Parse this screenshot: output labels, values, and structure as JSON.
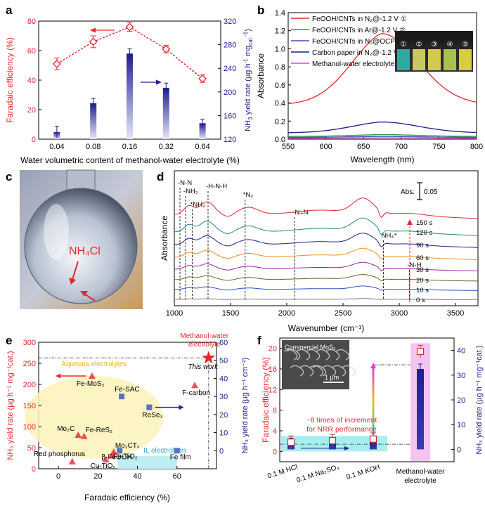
{
  "chart_data": [
    {
      "panel": "a",
      "type": "bar+line",
      "categories": [
        "0.04",
        "0.08",
        "0.16",
        "0.32",
        "0.64"
      ],
      "xlabel": "Water volumetric content of methanol-water electrolyte (%)",
      "ylabel": "Faradaic efficiency (%)",
      "ylabel2_parts": [
        "NH",
        "3",
        " yield rate (µg h",
        "-1",
        " mg",
        "cat.",
        "-1",
        ")"
      ],
      "ylim": [
        0,
        80
      ],
      "ylim2": [
        120,
        320
      ],
      "yticks": [
        "0",
        "20",
        "40",
        "60",
        "80"
      ],
      "yticks2": [
        "120",
        "160",
        "200",
        "240",
        "280",
        "320"
      ],
      "line_series": {
        "name": "Faradaic efficiency",
        "values": [
          51,
          66,
          76,
          61,
          41
        ],
        "err": [
          4,
          4,
          3,
          2.5,
          2.5
        ],
        "color": "#e8262a"
      },
      "bar_series": {
        "name": "NH3 yield rate",
        "values": [
          132,
          181,
          265,
          207,
          147
        ],
        "err": [
          10,
          8,
          8,
          8,
          7
        ],
        "color": "#1f1f8f"
      }
    },
    {
      "panel": "b",
      "type": "line",
      "xlabel": "Wavelength (nm)",
      "ylabel": "Absorbance",
      "xlim": [
        550,
        800
      ],
      "ylim": [
        0,
        1.4
      ],
      "xticks": [
        "550",
        "600",
        "650",
        "700",
        "750",
        "800"
      ],
      "yticks": [
        "0.0",
        "0.2",
        "0.4",
        "0.6",
        "0.8",
        "1.0",
        "1.2",
        "1.4"
      ],
      "series": [
        {
          "name": "FeOOH/CNTs in N₂@-1.2 V ①",
          "color": "#e8262a",
          "peak": 1.17,
          "base": 0.38
        },
        {
          "name": "FeOOH/CNTs in Ar@-1.2 V ②",
          "color": "#1f9e3a",
          "peak": 0.05,
          "base": 0.03
        },
        {
          "name": "FeOOH/CNTs in N₂@OCP ③",
          "color": "#4a4ab8",
          "peak": 0.03,
          "base": 0.02
        },
        {
          "name": "Carbon paper in N₂@-1.2 V ④",
          "color": "#1f1f8f",
          "peak": 0.19,
          "base": 0.07
        },
        {
          "name": "Methanol-water electrolyte ⑤",
          "color": "#e040e0",
          "peak": 0.015,
          "base": 0.01
        }
      ],
      "inset_labels": [
        "①",
        "②",
        "③",
        "④",
        "⑤"
      ]
    },
    {
      "panel": "c",
      "type": "photo",
      "label": "NH₄Cl"
    },
    {
      "panel": "d",
      "type": "line",
      "xlabel": "Wavenumber (cm⁻¹)",
      "ylabel": "Absorbance",
      "xlim": [
        1000,
        3700
      ],
      "xticks": [
        "1000",
        "1500",
        "2000",
        "2500",
        "3000",
        "3500"
      ],
      "scale_label": "Abs.",
      "scale_value": "0.05",
      "series_labels": [
        "150 s",
        "120 s",
        "90 s",
        "60 s",
        "30 s",
        "20 s",
        "10 s",
        "0 s"
      ],
      "series_colors": [
        "#e8262a",
        "#1a8a7a",
        "#1f1f8f",
        "#f08a1c",
        "#a020a0",
        "#5a6e2a",
        "#2a50c8",
        "#7a7a7a"
      ],
      "markers": [
        {
          "label": "-N-N",
          "x": 1050
        },
        {
          "label": "-NH₂",
          "x": 1100
        },
        {
          "label": "*NH₃",
          "x": 1160
        },
        {
          "label": "-H-N-H",
          "x": 1300
        },
        {
          "label": "*N₂",
          "x": 1630
        },
        {
          "label": "-N=N",
          "x": 2070
        },
        {
          "label": "NH₄⁺",
          "x": 2860
        },
        {
          "label": "-N-H",
          "x": 3090
        }
      ]
    },
    {
      "panel": "e",
      "type": "scatter",
      "xlabel": "Faradaic efficiency (%)",
      "ylabel": "NH₃ yield rate (µg h⁻¹ mg⁻¹cat.)",
      "ylabel2": "NH₃ yield rate (µg h⁻¹ cm⁻²)",
      "xlim": [
        -10,
        80
      ],
      "ylim": [
        0,
        300
      ],
      "ylim2": [
        -10,
        60
      ],
      "xticks": [
        "0",
        "20",
        "40",
        "60"
      ],
      "yticks": [
        "0",
        "50",
        "100",
        "150",
        "200",
        "250",
        "300"
      ],
      "yticks2": [
        "0",
        "10",
        "20",
        "30",
        "40",
        "50",
        "60"
      ],
      "region_labels": [
        "Aqueous electrolytes",
        "IL electrolytes"
      ],
      "star": {
        "label": "Methanol-water electrolyte",
        "sub": "This work",
        "x": 76,
        "y": 263
      },
      "triangles": [
        {
          "label": "Fe-MoS₂",
          "x": 17,
          "y": 220
        },
        {
          "label": "F-carbon",
          "x": 69,
          "y": 198
        },
        {
          "label": "Mo₂C",
          "x": 10,
          "y": 80
        },
        {
          "label": "Fe-ReS₂",
          "x": 13,
          "y": 77
        },
        {
          "label": "Mo₂CTₓ",
          "x": 28,
          "y": 40
        },
        {
          "label": "Fe-TiO₂",
          "x": 27,
          "y": 31
        },
        {
          "label": "Red phosphorus",
          "x": 7,
          "y": 17
        },
        {
          "label": "Cu-TiO₂",
          "x": 24,
          "y": 22
        }
      ],
      "squares": [
        {
          "label": "Fe-SAC",
          "x": 32,
          "y2": 30
        },
        {
          "label": "ReSe₃",
          "x": 46,
          "y2": 24
        },
        {
          "label": "β-FeOOH",
          "x": 31,
          "y2": 0
        },
        {
          "label": "Fe film",
          "x": 60,
          "y2": 0
        }
      ]
    },
    {
      "panel": "f",
      "type": "bar+scatter",
      "categories": [
        "0.1 M HCl",
        "0.1 M Na₂SO₄",
        "0.1 M KOH",
        "Methanol-water electrolyte"
      ],
      "ylabel": "Faradaic efficiency (%)",
      "ylabel2": "NH₃ yield rate (µg h⁻¹ mg⁻¹cat.)",
      "ylim": [
        -2,
        22
      ],
      "ylim2": [
        -5,
        45
      ],
      "yticks": [
        "0",
        "4",
        "8",
        "12",
        "16",
        "20"
      ],
      "yticks2": [
        "0",
        "10",
        "20",
        "30",
        "40"
      ],
      "fe_values": [
        1.8,
        2.1,
        2.4,
        19.4
      ],
      "yield_values": [
        2.5,
        2.8,
        3.0,
        32.5
      ],
      "annotation": [
        "~8 times of increment",
        "for NRR performance"
      ],
      "inset_label": "Commercial MoS₂",
      "scalebar": "1 µm"
    }
  ],
  "panel_letters": [
    "a",
    "b",
    "c",
    "d",
    "e",
    "f"
  ]
}
